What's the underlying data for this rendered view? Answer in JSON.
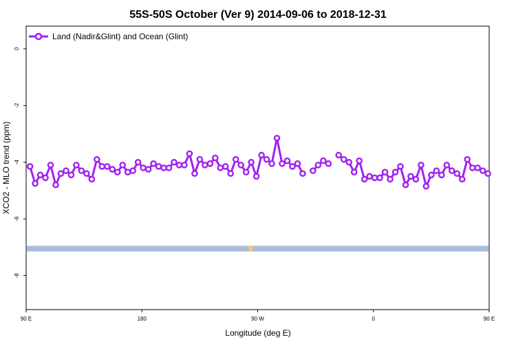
{
  "chart_data": {
    "type": "line",
    "title": "55S-50S October (Ver 9)   2014-09-06 to 2018-12-31",
    "xlabel": "Longitude (deg E)",
    "ylabel": "XCO2 - MLO trend (ppm)",
    "xlim": [
      90,
      450
    ],
    "ylim": [
      -9.2,
      0.8
    ],
    "x_ticks": [
      {
        "value": 90,
        "label": "90 E"
      },
      {
        "value": 180,
        "label": "180"
      },
      {
        "value": 270,
        "label": "90 W"
      },
      {
        "value": 360,
        "label": "0"
      },
      {
        "value": 450,
        "label": "90 E"
      },
      {
        "value": 540,
        "label": "180"
      }
    ],
    "y_ticks": [
      {
        "value": 0,
        "label": "0"
      },
      {
        "value": -2,
        "label": "-2"
      },
      {
        "value": -4,
        "label": "-4"
      },
      {
        "value": -6,
        "label": "-6"
      },
      {
        "value": -8,
        "label": "-8"
      }
    ],
    "grid": false,
    "legend_position": "top-left",
    "series": [
      {
        "name": "Land (Nadir&Glint) and Ocean (Glint)",
        "color": "#a020f0",
        "marker": "open-circle",
        "points": [
          [
            93,
            -4.15
          ],
          [
            97,
            -4.75
          ],
          [
            101,
            -4.45
          ],
          [
            105,
            -4.55
          ],
          [
            109,
            -4.1
          ],
          [
            113,
            -4.8
          ],
          [
            117,
            -4.4
          ],
          [
            121,
            -4.3
          ],
          [
            125,
            -4.45
          ],
          [
            129,
            -4.1
          ],
          [
            133,
            -4.3
          ],
          [
            137,
            -4.4
          ],
          [
            141,
            -4.6
          ],
          [
            145,
            -3.9
          ],
          [
            149,
            -4.15
          ],
          [
            153,
            -4.15
          ],
          [
            157,
            -4.25
          ],
          [
            161,
            -4.35
          ],
          [
            165,
            -4.1
          ],
          [
            169,
            -4.35
          ],
          [
            173,
            -4.3
          ],
          [
            177,
            -4.0
          ],
          [
            181,
            -4.2
          ],
          [
            185,
            -4.25
          ],
          [
            189,
            -4.05
          ],
          [
            193,
            -4.15
          ],
          [
            197,
            -4.2
          ],
          [
            201,
            -4.2
          ],
          [
            205,
            -4.0
          ],
          [
            209,
            -4.1
          ],
          [
            213,
            -4.1
          ],
          [
            217,
            -3.7
          ],
          [
            221,
            -4.4
          ],
          [
            225,
            -3.9
          ],
          [
            229,
            -4.1
          ],
          [
            233,
            -4.05
          ],
          [
            237,
            -3.85
          ],
          [
            241,
            -4.2
          ],
          [
            245,
            -4.15
          ],
          [
            249,
            -4.4
          ],
          [
            253,
            -3.9
          ],
          [
            257,
            -4.1
          ],
          [
            261,
            -4.35
          ],
          [
            265,
            -4.0
          ],
          [
            269,
            -4.5
          ],
          [
            273,
            -3.75
          ],
          [
            277,
            -3.9
          ],
          [
            281,
            -4.05
          ],
          [
            285,
            -3.15
          ],
          [
            289,
            -4.05
          ],
          [
            293,
            -3.95
          ],
          [
            297,
            -4.15
          ],
          [
            301,
            -4.05
          ],
          [
            305,
            -4.4
          ],
          null,
          [
            313,
            -4.3
          ],
          [
            317,
            -4.1
          ],
          [
            321,
            -3.95
          ],
          [
            325,
            -4.05
          ],
          null,
          [
            333,
            -3.75
          ],
          [
            337,
            -3.9
          ],
          [
            341,
            -4.0
          ],
          [
            345,
            -4.35
          ],
          [
            349,
            -3.95
          ],
          [
            353,
            -4.6
          ],
          [
            357,
            -4.5
          ],
          [
            361,
            -4.55
          ],
          [
            365,
            -4.55
          ],
          [
            369,
            -4.35
          ],
          [
            373,
            -4.6
          ],
          [
            377,
            -4.35
          ],
          [
            381,
            -4.15
          ],
          [
            385,
            -4.8
          ],
          [
            389,
            -4.5
          ],
          [
            393,
            -4.6
          ],
          [
            397,
            -4.1
          ],
          [
            401,
            -4.85
          ],
          [
            405,
            -4.45
          ],
          [
            409,
            -4.3
          ],
          [
            413,
            -4.45
          ],
          [
            417,
            -4.1
          ],
          [
            421,
            -4.3
          ],
          [
            425,
            -4.4
          ],
          [
            429,
            -4.6
          ],
          [
            433,
            -3.9
          ],
          [
            437,
            -4.2
          ],
          [
            441,
            -4.2
          ],
          [
            445,
            -4.3
          ],
          [
            449,
            -4.4
          ]
        ]
      }
    ],
    "land_band": {
      "y_range": [
        -7.15,
        -6.95
      ],
      "ocean_color": "#a9bcdc",
      "land_color": "#f5c76a",
      "land_x": [
        263,
        266
      ]
    }
  }
}
